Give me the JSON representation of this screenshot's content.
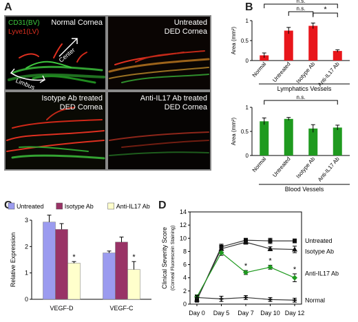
{
  "panel_labels": {
    "a": "A",
    "b": "B",
    "c": "C",
    "d": "D"
  },
  "panelA": {
    "legend": {
      "cd31": "CD31(BV)",
      "lyve1": "Lyve1(LV)"
    },
    "tiles": {
      "normal": {
        "caption1": "Normal Cornea",
        "caption2": ""
      },
      "untreated": {
        "caption1": "Untreated",
        "caption2": "DED Cornea"
      },
      "isotype": {
        "caption1": "Isotype Ab treated",
        "caption2": "DED Cornea"
      },
      "antiil17": {
        "caption1": "Anti-IL17 Ab treated",
        "caption2": "DED Cornea"
      }
    },
    "arrows": {
      "center": "Center",
      "limbus": "Limbus"
    },
    "colors": {
      "cd31": "#3ec93e",
      "lyve1": "#e03020"
    }
  },
  "chart_data": [
    {
      "type": "bar",
      "title": "",
      "caption": "Lymphatics Vessels",
      "ylabel": "Area (mm²)",
      "ylim": [
        0,
        1
      ],
      "yticks": [
        "0",
        "0.5",
        "1"
      ],
      "categories": [
        "Normal",
        "Untreated",
        "Isotype Ab",
        "Anti-IL17 Ab"
      ],
      "values": [
        0.13,
        0.75,
        0.87,
        0.24
      ],
      "errors": [
        0.06,
        0.08,
        0.07,
        0.03
      ],
      "color": "#e8161b",
      "significance": [
        {
          "text": "n.s.",
          "pair": [
            0,
            3
          ]
        },
        {
          "text": "n.s.",
          "pair": [
            1,
            2
          ]
        },
        {
          "text": "*",
          "pair": [
            2,
            3
          ]
        }
      ]
    },
    {
      "type": "bar",
      "title": "",
      "caption": "Blood Vessels",
      "ylabel": "Area (mm²)",
      "ylim": [
        0,
        1
      ],
      "yticks": [
        "0",
        "0.5",
        "1"
      ],
      "categories": [
        "Normal",
        "Untreated",
        "Isotype Ab",
        "Anti-IL17 Ab"
      ],
      "values": [
        0.71,
        0.76,
        0.56,
        0.58
      ],
      "errors": [
        0.07,
        0.03,
        0.08,
        0.05
      ],
      "color": "#1f9a1f",
      "significance": [
        {
          "text": "n.s.",
          "pair": [
            0,
            3
          ]
        }
      ]
    },
    {
      "type": "bar",
      "title": "",
      "ylabel": "Relative Expression",
      "ylim": [
        0,
        3
      ],
      "yticks": [
        "0",
        "1",
        "2",
        "3"
      ],
      "categories": [
        "VEGF-D",
        "VEGF-C"
      ],
      "series": [
        {
          "name": "Untreated",
          "values": [
            2.93,
            1.76
          ],
          "errors": [
            0.26,
            0.07
          ],
          "color": "#9b9bef"
        },
        {
          "name": "Isotype Ab",
          "values": [
            2.65,
            2.17
          ],
          "errors": [
            0.22,
            0.19
          ],
          "color": "#993366"
        },
        {
          "name": "Anti-IL17 Ab",
          "values": [
            1.37,
            1.13
          ],
          "errors": [
            0.06,
            0.3
          ],
          "color": "#ffffcc"
        }
      ],
      "significance": [
        {
          "text": "*",
          "category": 0
        },
        {
          "text": "*",
          "category": 1
        }
      ],
      "legend_position": "top"
    },
    {
      "type": "line",
      "title": "",
      "ylabel": "Clinical Severity Score",
      "ylabel2": "(Corneal Fluorescein Staining)",
      "ylim": [
        0,
        14
      ],
      "yticks": [
        "0",
        "2",
        "4",
        "6",
        "8",
        "10",
        "12",
        "14"
      ],
      "categories": [
        "Day 0",
        "Day 5",
        "Day 7",
        "Day 10",
        "Day 12"
      ],
      "series": [
        {
          "name": "Untreated",
          "values": [
            0.6,
            8.7,
            9.7,
            9.6,
            9.6
          ],
          "errors": [
            0.3,
            0.4,
            0.3,
            0.4,
            0.3
          ],
          "color": "#333333"
        },
        {
          "name": "Isotype Ab",
          "values": [
            0.7,
            8.4,
            9.4,
            8.4,
            8.3
          ],
          "errors": [
            0.3,
            0.5,
            0.3,
            0.3,
            0.5
          ],
          "color": "#333333"
        },
        {
          "name": "Anti-IL17 Ab",
          "values": [
            1.1,
            7.8,
            4.8,
            5.6,
            4.0
          ],
          "errors": [
            0.3,
            0.4,
            0.3,
            0.3,
            0.6
          ],
          "color": "#1f9a1f"
        },
        {
          "name": "Normal",
          "values": [
            1.0,
            0.8,
            1.0,
            0.7,
            0.6
          ],
          "errors": [
            0.3,
            0.4,
            0.3,
            0.3,
            0.3
          ],
          "color": "#333333"
        }
      ],
      "significance": [
        {
          "text": "*",
          "x_index": 2
        },
        {
          "text": "*",
          "x_index": 3
        },
        {
          "text": "*",
          "x_index": 4
        }
      ]
    }
  ]
}
